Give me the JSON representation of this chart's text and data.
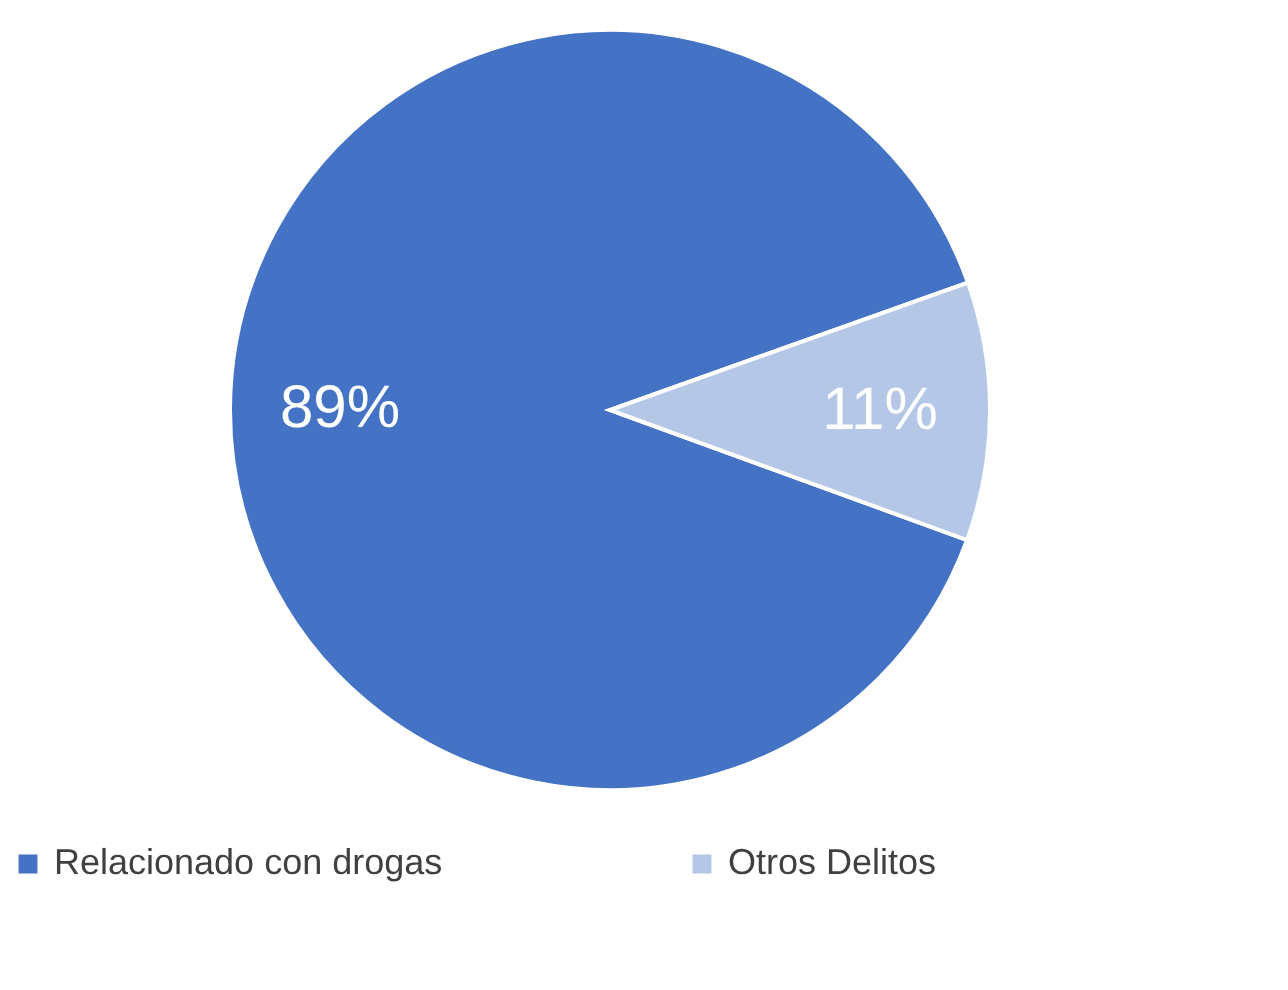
{
  "chart_data": {
    "type": "pie",
    "categories": [
      "Relacionado con drogas",
      "Otros Delitos"
    ],
    "values": [
      89,
      11
    ],
    "colors": [
      "#4472c4",
      "#b4c7e7"
    ],
    "value_labels": [
      "89%",
      "11%"
    ],
    "legend": "bottom"
  }
}
